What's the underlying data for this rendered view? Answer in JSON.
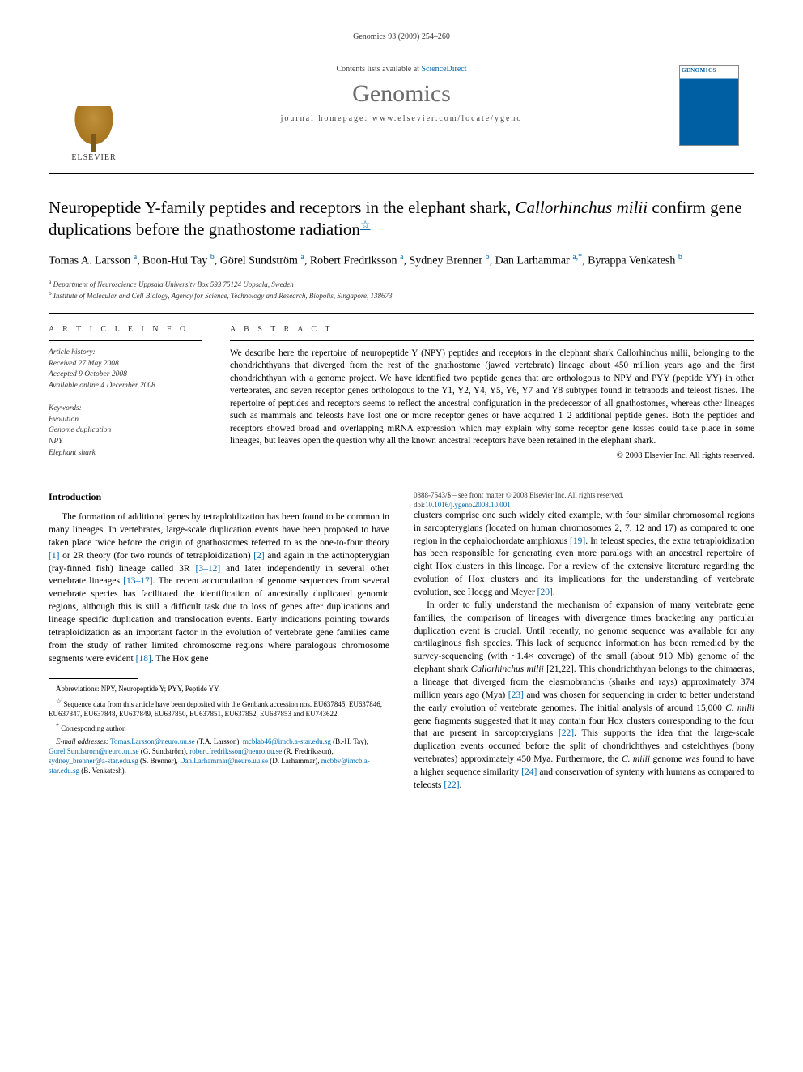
{
  "running_head": "Genomics 93 (2009) 254–260",
  "header": {
    "contents_prefix": "Contents lists available at ",
    "contents_link": "ScienceDirect",
    "journal": "Genomics",
    "homepage_prefix": "journal homepage: ",
    "homepage": "www.elsevier.com/locate/ygeno",
    "elsevier_label": "ELSEVIER",
    "cover_label": "GENOMICS"
  },
  "title_pre": "Neuropeptide Y-family peptides and receptors in the elephant shark, ",
  "title_species": "Callorhinchus milii",
  "title_post": " confirm gene duplications before the gnathostome radiation",
  "title_star": "☆",
  "authors_html": "Tomas A. Larsson <sup>a</sup>, Boon-Hui Tay <sup>b</sup>, Görel Sundström <sup>a</sup>, Robert Fredriksson <sup>a</sup>, Sydney Brenner <sup>b</sup>, Dan Larhammar <sup>a,*</sup>, Byrappa Venkatesh <sup>b</sup>",
  "affiliations": {
    "a": "Department of Neuroscience Uppsala University Box 593 75124 Uppsala, Sweden",
    "b": "Institute of Molecular and Cell Biology, Agency for Science, Technology and Research, Biopolis, Singapore, 138673"
  },
  "article_info_label": "A R T I C L E   I N F O",
  "abstract_label": "A B S T R A C T",
  "history": {
    "label": "Article history:",
    "received": "Received 27 May 2008",
    "accepted": "Accepted 9 October 2008",
    "online": "Available online 4 December 2008"
  },
  "keywords": {
    "label": "Keywords:",
    "items": [
      "Evolution",
      "Genome duplication",
      "NPY",
      "Elephant shark"
    ]
  },
  "abstract": "We describe here the repertoire of neuropeptide Y (NPY) peptides and receptors in the elephant shark Callorhinchus milii, belonging to the chondrichthyans that diverged from the rest of the gnathostome (jawed vertebrate) lineage about 450 million years ago and the first chondrichthyan with a genome project. We have identified two peptide genes that are orthologous to NPY and PYY (peptide YY) in other vertebrates, and seven receptor genes orthologous to the Y1, Y2, Y4, Y5, Y6, Y7 and Y8 subtypes found in tetrapods and teleost fishes. The repertoire of peptides and receptors seems to reflect the ancestral configuration in the predecessor of all gnathostomes, whereas other lineages such as mammals and teleosts have lost one or more receptor genes or have acquired 1–2 additional peptide genes. Both the peptides and receptors showed broad and overlapping mRNA expression which may explain why some receptor gene losses could take place in some lineages, but leaves open the question why all the known ancestral receptors have been retained in the elephant shark.",
  "copyright": "© 2008 Elsevier Inc. All rights reserved.",
  "intro_heading": "Introduction",
  "intro_p1": "The formation of additional genes by tetraploidization has been found to be common in many lineages. In vertebrates, large-scale duplication events have been proposed to have taken place twice before the origin of gnathostomes referred to as the one-to-four theory [1] or 2R theory (for two rounds of tetraploidization) [2] and again in the actinopterygian (ray-finned fish) lineage called 3R [3–12] and later independently in several other vertebrate lineages [13–17]. The recent accumulation of genome sequences from several vertebrate species has facilitated the identification of ancestrally duplicated genomic regions, although this is still a difficult task due to loss of genes after duplications and lineage specific duplication and translocation events. Early indications pointing towards tetraploidization as an important factor in the evolution of vertebrate gene families came from the study of rather limited chromosome regions where paralogous chromosome segments were evident [18]. The Hox gene",
  "intro_p2": "clusters comprise one such widely cited example, with four similar chromosomal regions in sarcopterygians (located on human chromosomes 2, 7, 12 and 17) as compared to one region in the cephalochordate amphioxus [19]. In teleost species, the extra tetraploidization has been responsible for generating even more paralogs with an ancestral repertoire of eight Hox clusters in this lineage. For a review of the extensive literature regarding the evolution of Hox clusters and its implications for the understanding of vertebrate evolution, see Hoegg and Meyer [20].",
  "intro_p3": "In order to fully understand the mechanism of expansion of many vertebrate gene families, the comparison of lineages with divergence times bracketing any particular duplication event is crucial. Until recently, no genome sequence was available for any cartilaginous fish species. This lack of sequence information has been remedied by the survey-sequencing (with ~1.4× coverage) of the small (about 910 Mb) genome of the elephant shark Callorhinchus milii [21,22]. This chondrichthyan belongs to the chimaeras, a lineage that diverged from the elasmobranchs (sharks and rays) approximately 374 million years ago (Mya) [23] and was chosen for sequencing in order to better understand the early evolution of vertebrate genomes. The initial analysis of around 15,000 C. milii gene fragments suggested that it may contain four Hox clusters corresponding to the four that are present in sarcopterygians [22]. This supports the idea that the large-scale duplication events occurred before the split of chondrichthyes and osteichthyes (bony vertebrates) approximately 450 Mya. Furthermore, the C. milii genome was found to have a higher sequence similarity [24] and conservation of synteny with humans as compared to teleosts [22].",
  "footnotes": {
    "abbrev": "Abbreviations: NPY, Neuropeptide Y; PYY, Peptide YY.",
    "seq": "Sequence data from this article have been deposited with the Genbank accession nos. EU637845, EU637846, EU637847, EU637848, EU637849, EU637850, EU637851, EU637852, EU637853 and EU743622.",
    "corr": "Corresponding author.",
    "emails_label": "E-mail addresses: ",
    "emails": [
      {
        "addr": "Tomas.Larsson@neuro.uu.se",
        "who": "(T.A. Larsson)"
      },
      {
        "addr": "mcblab46@imcb.a-star.edu.sg",
        "who": "(B.-H. Tay)"
      },
      {
        "addr": "Gorel.Sundstrom@neuro.uu.se",
        "who": "(G. Sundström)"
      },
      {
        "addr": "robert.fredriksson@neuro.uu.se",
        "who": "(R. Fredriksson)"
      },
      {
        "addr": "sydney_brenner@a-star.edu.sg",
        "who": "(S. Brenner)"
      },
      {
        "addr": "Dan.Larhammar@neuro.uu.se",
        "who": "(D. Larhammar)"
      },
      {
        "addr": "mcbbv@imcb.a-star.edu.sg",
        "who": "(B. Venkatesh)"
      }
    ]
  },
  "pgfoot": {
    "issn": "0888-7543/$ – see front matter © 2008 Elsevier Inc. All rights reserved.",
    "doi_label": "doi:",
    "doi": "10.1016/j.ygeno.2008.10.001"
  },
  "colors": {
    "link": "#0066aa",
    "journal_grey": "#6b6b6b",
    "text": "#000000"
  }
}
